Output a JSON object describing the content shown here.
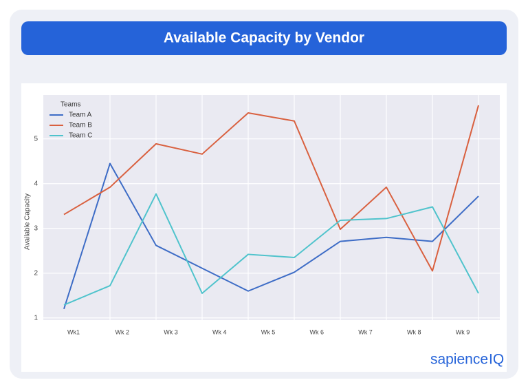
{
  "header": {
    "title": "Available Capacity by Vendor"
  },
  "chart_data": {
    "type": "line",
    "y_label": "Available Capacity",
    "legend_title": "Teams",
    "legend": "upper left",
    "grid": true,
    "categories": [
      "Wk1",
      "Wk 2",
      "Wk 3",
      "Wk 4",
      "Wk 5",
      "Wk 6",
      "Wk 7",
      "Wk 8",
      "Wk 9",
      null
    ],
    "series": [
      {
        "name": "Team A",
        "color": "#3d6cc6",
        "values": [
          1.2,
          4.45,
          2.62,
          2.11,
          1.6,
          2.02,
          2.71,
          2.8,
          2.71,
          3.72
        ]
      },
      {
        "name": "Team B",
        "color": "#d9603f",
        "values": [
          3.31,
          3.92,
          4.89,
          4.66,
          5.58,
          5.4,
          2.98,
          3.92,
          2.05,
          5.75
        ]
      },
      {
        "name": "Team C",
        "color": "#4fc3cc",
        "values": [
          1.29,
          1.72,
          3.77,
          1.55,
          2.42,
          2.35,
          3.18,
          3.22,
          3.48,
          1.55
        ]
      }
    ],
    "ylim": [
      0.95,
      5.98
    ],
    "yticks": [
      1,
      2,
      3,
      4,
      5
    ]
  },
  "logo": {
    "word": "sapience",
    "mark": "IQ"
  }
}
